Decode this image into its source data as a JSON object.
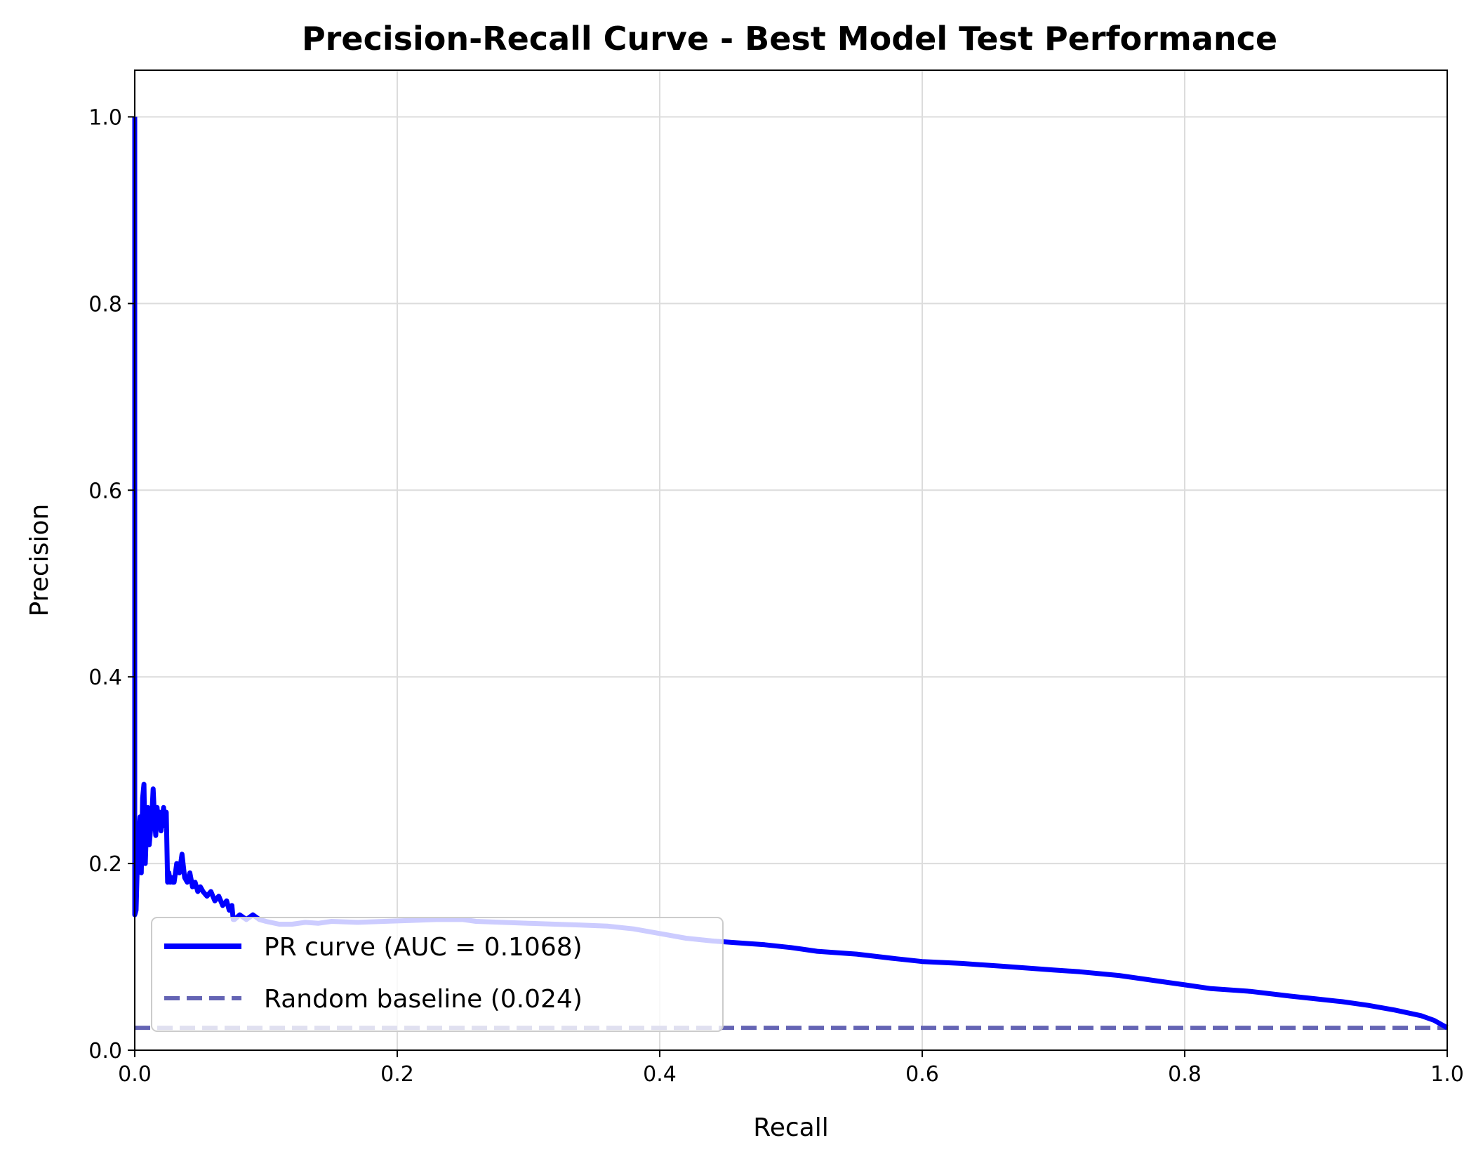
{
  "chart_data": {
    "type": "line",
    "title": "Precision-Recall Curve - Best Model Test Performance",
    "xlabel": "Recall",
    "ylabel": "Precision",
    "xlim": [
      0.0,
      1.0
    ],
    "ylim": [
      0.0,
      1.05
    ],
    "xticks": [
      "0.0",
      "0.2",
      "0.4",
      "0.6",
      "0.8",
      "1.0"
    ],
    "yticks": [
      "0.0",
      "0.2",
      "0.4",
      "0.6",
      "0.8",
      "1.0"
    ],
    "grid": true,
    "legend_position": "lower-left",
    "series": [
      {
        "name": "PR curve (AUC = 0.1068)",
        "color": "#0000ff",
        "style": "solid",
        "x": [
          0.0,
          0.0,
          0.001,
          0.002,
          0.003,
          0.004,
          0.005,
          0.006,
          0.007,
          0.008,
          0.009,
          0.01,
          0.011,
          0.012,
          0.013,
          0.014,
          0.015,
          0.016,
          0.017,
          0.018,
          0.019,
          0.02,
          0.021,
          0.022,
          0.023,
          0.024,
          0.025,
          0.026,
          0.027,
          0.028,
          0.029,
          0.03,
          0.032,
          0.034,
          0.036,
          0.038,
          0.04,
          0.042,
          0.044,
          0.046,
          0.048,
          0.05,
          0.052,
          0.055,
          0.058,
          0.061,
          0.064,
          0.067,
          0.07,
          0.072,
          0.074,
          0.075,
          0.076,
          0.08,
          0.085,
          0.09,
          0.095,
          0.1,
          0.11,
          0.12,
          0.13,
          0.14,
          0.15,
          0.17,
          0.19,
          0.21,
          0.23,
          0.25,
          0.26,
          0.28,
          0.3,
          0.32,
          0.34,
          0.36,
          0.38,
          0.4,
          0.42,
          0.44,
          0.46,
          0.48,
          0.5,
          0.52,
          0.55,
          0.58,
          0.6,
          0.63,
          0.66,
          0.7,
          0.72,
          0.75,
          0.78,
          0.8,
          0.82,
          0.85,
          0.88,
          0.9,
          0.92,
          0.94,
          0.96,
          0.98,
          0.99,
          1.0
        ],
        "y": [
          1.0,
          0.145,
          0.15,
          0.2,
          0.23,
          0.25,
          0.19,
          0.27,
          0.285,
          0.2,
          0.24,
          0.26,
          0.22,
          0.235,
          0.25,
          0.28,
          0.25,
          0.23,
          0.26,
          0.24,
          0.255,
          0.235,
          0.25,
          0.26,
          0.24,
          0.255,
          0.18,
          0.19,
          0.18,
          0.185,
          0.18,
          0.18,
          0.2,
          0.19,
          0.21,
          0.185,
          0.18,
          0.19,
          0.175,
          0.18,
          0.17,
          0.175,
          0.17,
          0.165,
          0.17,
          0.16,
          0.165,
          0.155,
          0.16,
          0.15,
          0.155,
          0.14,
          0.14,
          0.145,
          0.14,
          0.145,
          0.14,
          0.138,
          0.135,
          0.135,
          0.137,
          0.136,
          0.138,
          0.137,
          0.138,
          0.139,
          0.14,
          0.14,
          0.138,
          0.137,
          0.136,
          0.135,
          0.134,
          0.133,
          0.13,
          0.125,
          0.12,
          0.117,
          0.115,
          0.113,
          0.11,
          0.106,
          0.103,
          0.098,
          0.095,
          0.093,
          0.09,
          0.086,
          0.084,
          0.08,
          0.074,
          0.07,
          0.066,
          0.063,
          0.058,
          0.055,
          0.052,
          0.048,
          0.043,
          0.037,
          0.032,
          0.024
        ]
      },
      {
        "name": "Random baseline (0.024)",
        "color": "#6464b4",
        "style": "dashed",
        "x": [
          0.0,
          1.0
        ],
        "y": [
          0.024,
          0.024
        ]
      }
    ]
  }
}
